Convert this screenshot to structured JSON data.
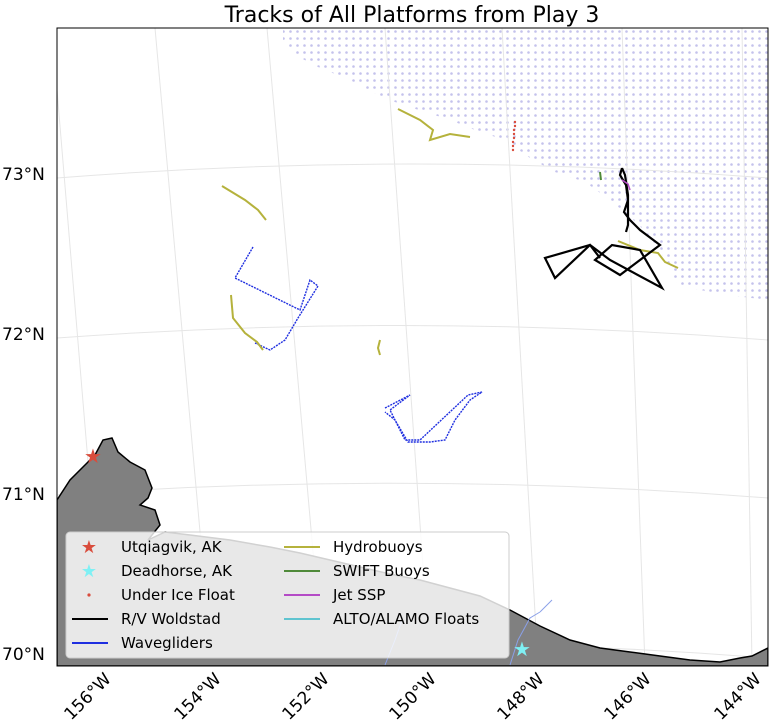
{
  "chart_data": {
    "type": "map",
    "title": "Tracks of All Platforms from Play 3",
    "lat_ticks": [
      "73°N",
      "72°N",
      "71°N",
      "70°N"
    ],
    "lon_ticks": [
      "156°W",
      "154°W",
      "152°W",
      "150°W",
      "148°W",
      "146°W",
      "144°W"
    ],
    "lat_range": [
      70,
      73.8
    ],
    "lon_range": [
      -156.5,
      -144
    ],
    "grid": true,
    "legend": {
      "position": "lower-left",
      "entries": [
        {
          "label": "Utqiagvik, AK",
          "marker": "star",
          "color": "#d94c3c"
        },
        {
          "label": "Deadhorse, AK",
          "marker": "star",
          "color": "#7ff0f4"
        },
        {
          "label": "Under Ice Float",
          "marker": "dot",
          "color": "#d94c3c"
        },
        {
          "label": "R/V Woldstad",
          "marker": "line",
          "color": "#000000"
        },
        {
          "label": "Wavegliders",
          "marker": "line",
          "color": "#1f2fe0"
        },
        {
          "label": "Hydrobuoys",
          "marker": "line",
          "color": "#b5b23c"
        },
        {
          "label": "SWIFT Buoys",
          "marker": "line",
          "color": "#4f8a3a"
        },
        {
          "label": "Jet SSP",
          "marker": "line",
          "color": "#b44bc6"
        },
        {
          "label": "ALTO/ALAMO Floats",
          "marker": "line",
          "color": "#5fc4d0"
        }
      ]
    },
    "locations": [
      {
        "name": "Utqiagvik, AK",
        "lat": 71.29,
        "lon": -156.78
      },
      {
        "name": "Deadhorse, AK",
        "lat": 70.2,
        "lon": -148.46
      }
    ],
    "colors": {
      "land": "#808080",
      "ice_dots": "#c4c2ec",
      "woldstad": "#000000",
      "waveglider": "#1f2fe0",
      "hydrobuoy": "#b5b23c",
      "float": "#d94c3c"
    }
  }
}
